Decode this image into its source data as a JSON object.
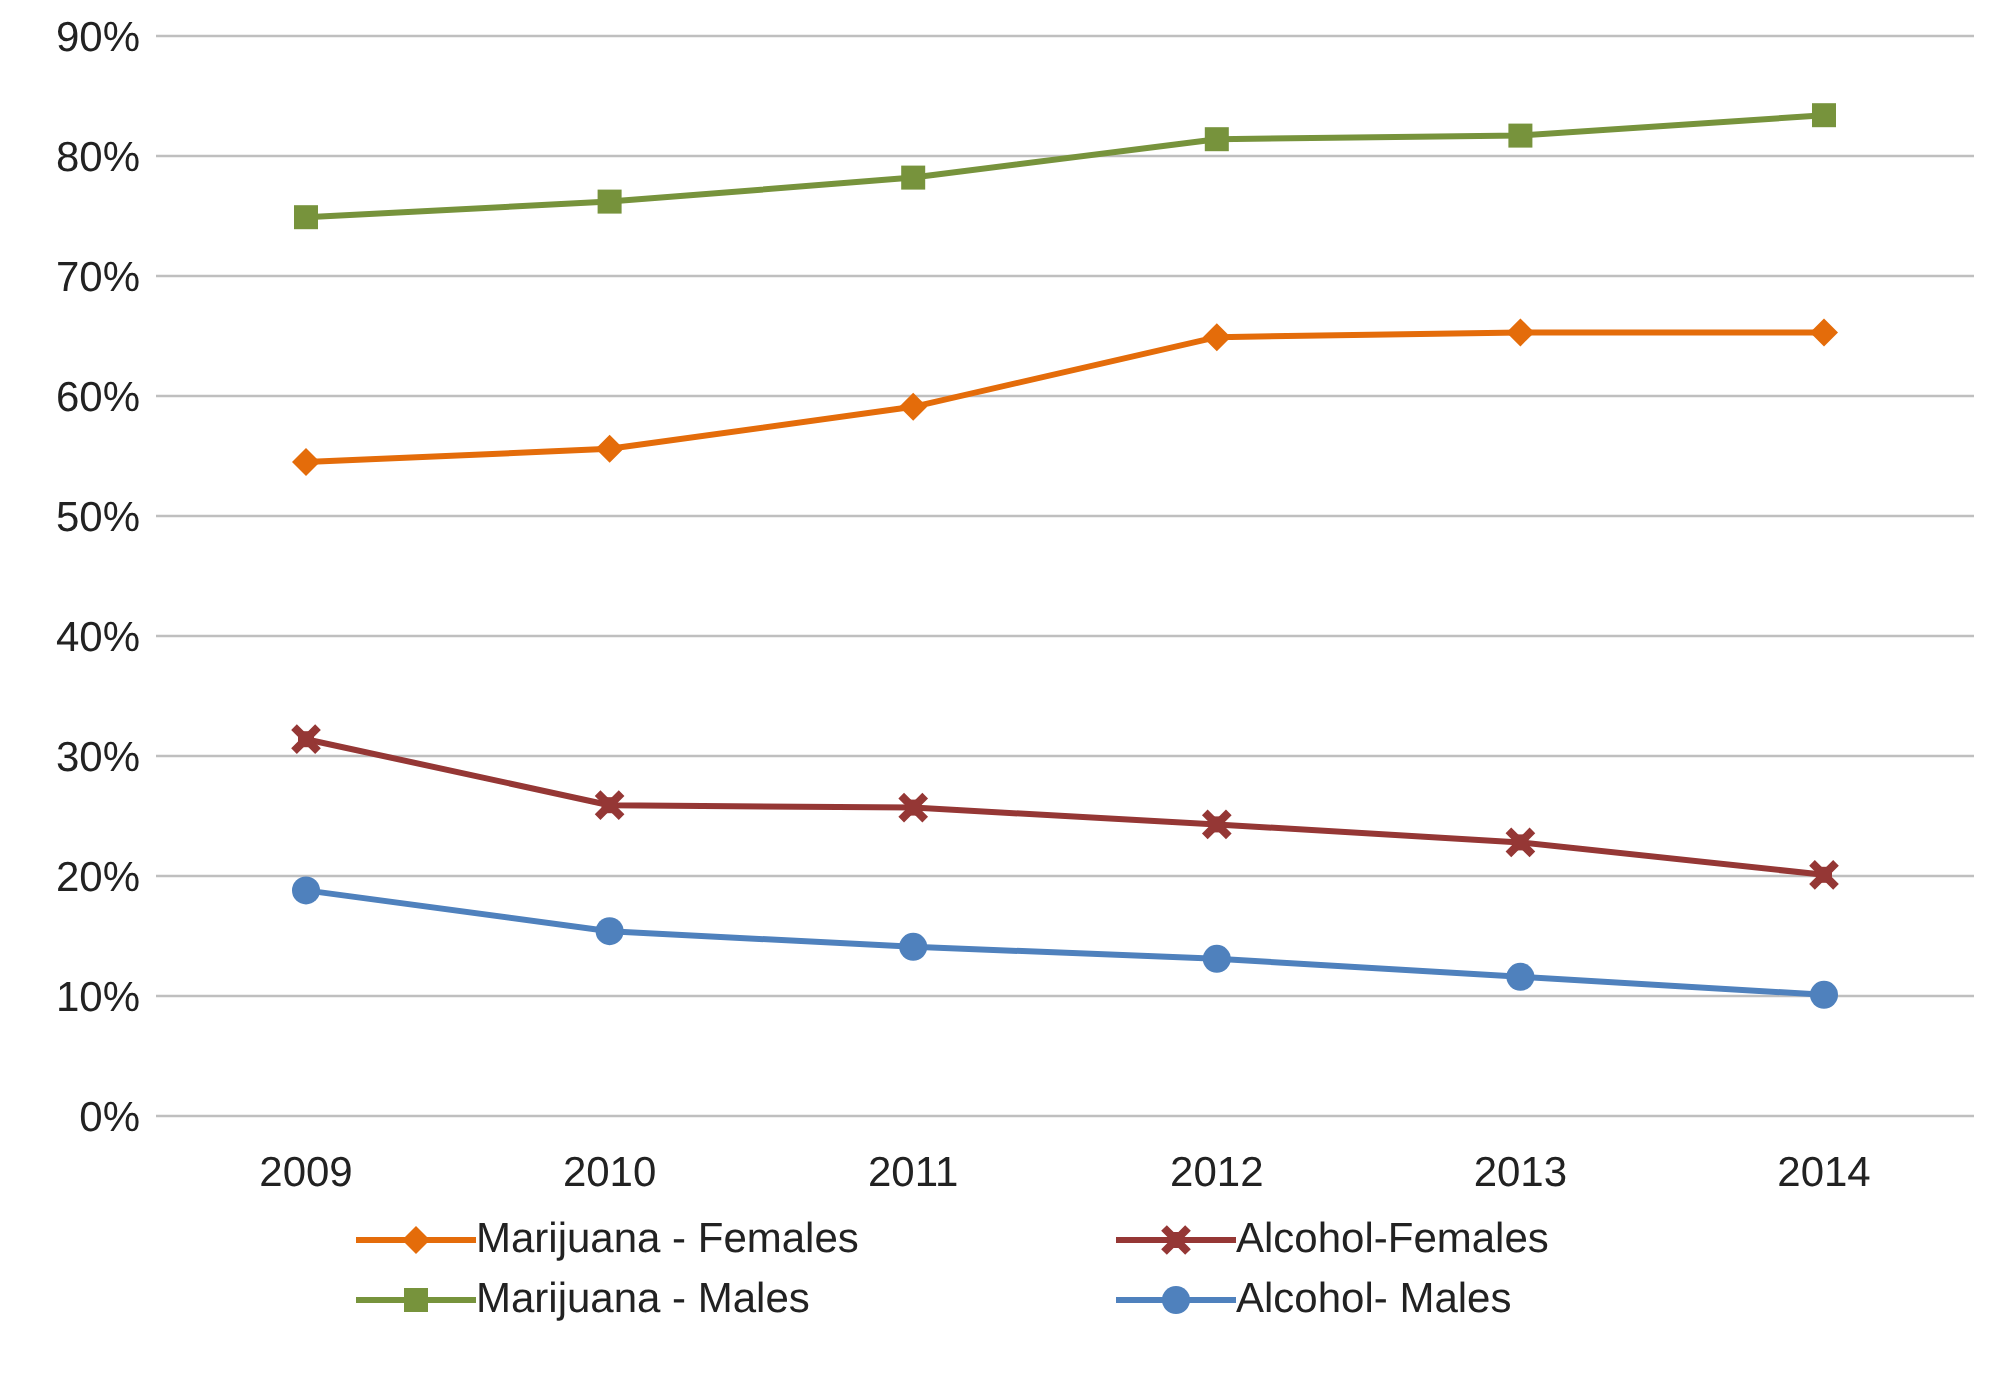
{
  "chart_data": {
    "type": "line",
    "categories": [
      "2009",
      "2010",
      "2011",
      "2012",
      "2013",
      "2014"
    ],
    "series": [
      {
        "name": "Marijuana - Females",
        "color": "#e46c0a",
        "marker": "diamond",
        "values": [
          54.5,
          55.6,
          59.1,
          64.9,
          65.3,
          65.3
        ]
      },
      {
        "name": "Alcohol-Females",
        "color": "#953735",
        "marker": "cross",
        "values": [
          31.4,
          25.9,
          25.7,
          24.3,
          22.8,
          20.1
        ]
      },
      {
        "name": "Marijuana - Males",
        "color": "#77933c",
        "marker": "square",
        "values": [
          74.9,
          76.2,
          78.2,
          81.4,
          81.7,
          83.4
        ]
      },
      {
        "name": "Alcohol- Males",
        "color": "#4f81bd",
        "marker": "circle",
        "values": [
          18.8,
          15.4,
          14.1,
          13.1,
          11.6,
          10.1
        ]
      }
    ],
    "ylim": [
      0,
      90
    ],
    "yticks": [
      {
        "value": 0,
        "label": "0%"
      },
      {
        "value": 10,
        "label": "10%"
      },
      {
        "value": 20,
        "label": "20%"
      },
      {
        "value": 30,
        "label": "30%"
      },
      {
        "value": 40,
        "label": "40%"
      },
      {
        "value": 50,
        "label": "50%"
      },
      {
        "value": 60,
        "label": "60%"
      },
      {
        "value": 70,
        "label": "70%"
      },
      {
        "value": 80,
        "label": "80%"
      },
      {
        "value": 90,
        "label": "90%"
      }
    ],
    "grid": "y",
    "legend": "bottom",
    "line_style": "solid"
  }
}
